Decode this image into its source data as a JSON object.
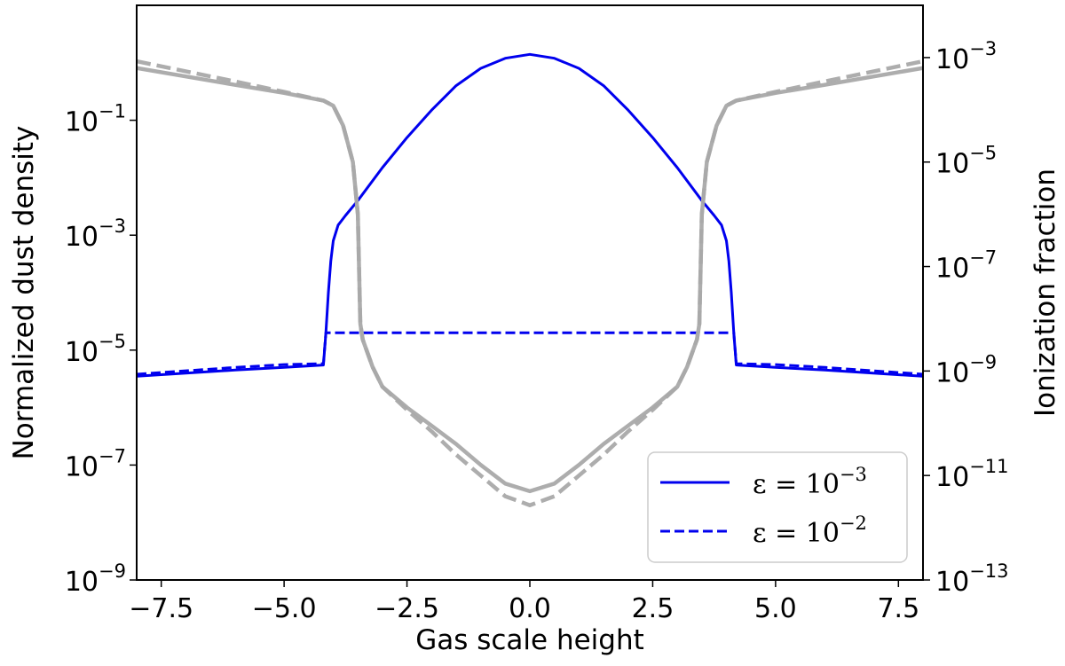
{
  "chart_data": {
    "type": "line",
    "xlabel": "Gas scale height",
    "ylabel_left": "Normalized dust density",
    "ylabel_right": "Ionization fraction",
    "xlim": [
      -8,
      8
    ],
    "ylim_left": [
      1e-09,
      10
    ],
    "ylim_right": [
      1e-13,
      0.01
    ],
    "yscale": "log",
    "x_ticks": [
      -7.5,
      -5.0,
      -2.5,
      0.0,
      2.5,
      5.0,
      7.5
    ],
    "x_tick_labels": [
      "−7.5",
      "−5.0",
      "−2.5",
      "0.0",
      "2.5",
      "5.0",
      "7.5"
    ],
    "y_left_ticks": [
      {
        "value": 0.1,
        "base": "10",
        "exp": "−1"
      },
      {
        "value": 0.001,
        "base": "10",
        "exp": "−3"
      },
      {
        "value": 1e-05,
        "base": "10",
        "exp": "−5"
      },
      {
        "value": 1e-07,
        "base": "10",
        "exp": "−7"
      },
      {
        "value": 1e-09,
        "base": "10",
        "exp": "−9"
      }
    ],
    "y_right_ticks": [
      {
        "value": 0.001,
        "base": "10",
        "exp": "−3"
      },
      {
        "value": 1e-05,
        "base": "10",
        "exp": "−5"
      },
      {
        "value": 1e-07,
        "base": "10",
        "exp": "−7"
      },
      {
        "value": 1e-09,
        "base": "10",
        "exp": "−9"
      },
      {
        "value": 1e-11,
        "base": "10",
        "exp": "−11"
      },
      {
        "value": 1e-13,
        "base": "10",
        "exp": "−13"
      }
    ],
    "grid": false,
    "legend": {
      "position": "lower-right",
      "entries": [
        {
          "label_prefix": "ε = 10",
          "label_exp": "−3",
          "style": "solid",
          "color": "#0000ee"
        },
        {
          "label_prefix": "ε = 10",
          "label_exp": "−2",
          "style": "dashed",
          "color": "#0000ee"
        }
      ]
    },
    "series": [
      {
        "axis": "left",
        "color": "#0000ee",
        "style": "solid",
        "x": [
          -8.0,
          -6.0,
          -5.0,
          -4.2,
          -4.15,
          -4.1,
          -4.05,
          -4.0,
          -3.9,
          -3.75,
          -3.5,
          -3.0,
          -2.5,
          -2.0,
          -1.5,
          -1.0,
          -0.5,
          0.0,
          0.5,
          1.0,
          1.5,
          2.0,
          2.5,
          3.0,
          3.5,
          3.75,
          3.9,
          4.0,
          4.05,
          4.1,
          4.15,
          4.2,
          5.0,
          6.0,
          8.0
        ],
        "y": [
          3.5e-06,
          4.5e-06,
          5e-06,
          5.5e-06,
          2e-05,
          0.0001,
          0.00035,
          0.0008,
          0.0015,
          0.0022,
          0.004,
          0.015,
          0.05,
          0.15,
          0.4,
          0.8,
          1.2,
          1.4,
          1.2,
          0.8,
          0.4,
          0.15,
          0.05,
          0.015,
          0.004,
          0.0022,
          0.0015,
          0.0008,
          0.00035,
          0.0001,
          2e-05,
          5.5e-06,
          5e-06,
          4.5e-06,
          3.5e-06
        ]
      },
      {
        "axis": "left",
        "color": "#0000ee",
        "style": "dashed",
        "x": [
          -8.0,
          -6.0,
          -5.0,
          -4.2,
          -4.15,
          4.15,
          4.2,
          5.0,
          6.0,
          8.0
        ],
        "y": [
          3.8e-06,
          5e-06,
          5.6e-06,
          5.8e-06,
          2e-05,
          2e-05,
          5.8e-06,
          5.6e-06,
          5e-06,
          3.8e-06
        ]
      },
      {
        "axis": "right",
        "color": "#a9a9a9",
        "style": "solid",
        "x": [
          -8.0,
          -6.0,
          -5.0,
          -4.2,
          -4.0,
          -3.8,
          -3.6,
          -3.5,
          -3.45,
          -3.4,
          -3.2,
          -3.0,
          -2.5,
          -2.0,
          -1.5,
          -1.0,
          -0.5,
          0.0,
          0.5,
          1.0,
          1.5,
          2.0,
          2.5,
          3.0,
          3.2,
          3.4,
          3.45,
          3.5,
          3.6,
          3.8,
          4.0,
          4.2,
          5.0,
          6.0,
          8.0
        ],
        "y": [
          0.00063,
          0.0003,
          0.00021,
          0.00015,
          0.00012,
          5e-05,
          1e-05,
          1e-06,
          8e-09,
          4e-09,
          1.2e-09,
          5e-10,
          2e-10,
          9e-11,
          4e-11,
          1.6e-11,
          7e-12,
          5e-12,
          7e-12,
          1.6e-11,
          4e-11,
          9e-11,
          2e-10,
          5e-10,
          1.2e-09,
          4e-09,
          8e-09,
          1e-06,
          1e-05,
          5e-05,
          0.00012,
          0.00015,
          0.00021,
          0.0003,
          0.00063
        ]
      },
      {
        "axis": "right",
        "color": "#a9a9a9",
        "style": "dashed",
        "x": [
          -8.0,
          -6.0,
          -5.0,
          -4.2,
          -4.0,
          -3.8,
          -3.6,
          -3.5,
          -3.45,
          -3.4,
          -3.2,
          -3.0,
          -2.5,
          -2.0,
          -1.5,
          -1.0,
          -0.5,
          0.0,
          0.5,
          1.0,
          1.5,
          2.0,
          2.5,
          3.0,
          3.2,
          3.4,
          3.45,
          3.5,
          3.6,
          3.8,
          4.0,
          4.2,
          5.0,
          6.0,
          8.0
        ],
        "y": [
          0.00085,
          0.00035,
          0.00022,
          0.00015,
          0.00012,
          5e-05,
          1e-05,
          1e-06,
          8e-09,
          4e-09,
          1.2e-09,
          5e-10,
          1.8e-10,
          7e-11,
          2.5e-11,
          1e-11,
          4e-12,
          2.7e-12,
          4e-12,
          1e-11,
          2.5e-11,
          7e-11,
          1.8e-10,
          5e-10,
          1.2e-09,
          4e-09,
          8e-09,
          1e-06,
          1e-05,
          5e-05,
          0.00012,
          0.00015,
          0.00022,
          0.00035,
          0.00085
        ]
      }
    ]
  }
}
